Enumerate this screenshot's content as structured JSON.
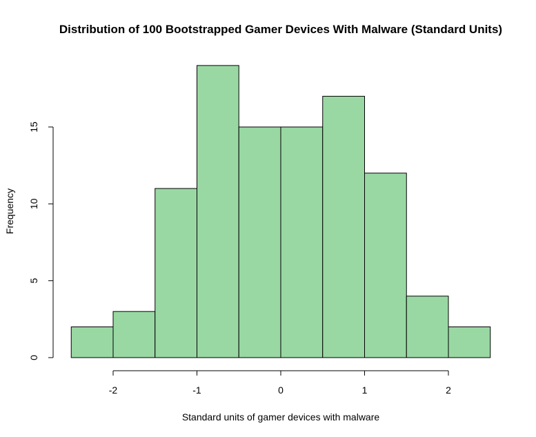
{
  "chart_data": {
    "type": "histogram",
    "title": "Distribution of 100 Bootstrapped Gamer Devices With Malware (Standard Units)",
    "xlabel": "Standard units of gamer devices with malware",
    "ylabel": "Frequency",
    "bins": [
      {
        "start": -2.5,
        "end": -2.0,
        "count": 2
      },
      {
        "start": -2.0,
        "end": -1.5,
        "count": 3
      },
      {
        "start": -1.5,
        "end": -1.0,
        "count": 11
      },
      {
        "start": -1.0,
        "end": -0.5,
        "count": 19
      },
      {
        "start": -0.5,
        "end": 0.0,
        "count": 15
      },
      {
        "start": 0.0,
        "end": 0.5,
        "count": 15
      },
      {
        "start": 0.5,
        "end": 1.0,
        "count": 17
      },
      {
        "start": 1.0,
        "end": 1.5,
        "count": 12
      },
      {
        "start": 1.5,
        "end": 2.0,
        "count": 4
      },
      {
        "start": 2.0,
        "end": 2.5,
        "count": 2
      }
    ],
    "x_ticks": [
      -2,
      -1,
      0,
      1,
      2
    ],
    "x_tick_labels": [
      "-2",
      "-1",
      "0",
      "1",
      "2"
    ],
    "y_ticks": [
      0,
      5,
      10,
      15
    ],
    "y_tick_labels": [
      "0",
      "5",
      "10",
      "15"
    ],
    "xlim": [
      -2.5,
      2.5
    ],
    "ylim": [
      0,
      19
    ],
    "bar_color": "#99d8a3",
    "bar_edge_color": "#000000",
    "grid": false,
    "legend": "none"
  }
}
